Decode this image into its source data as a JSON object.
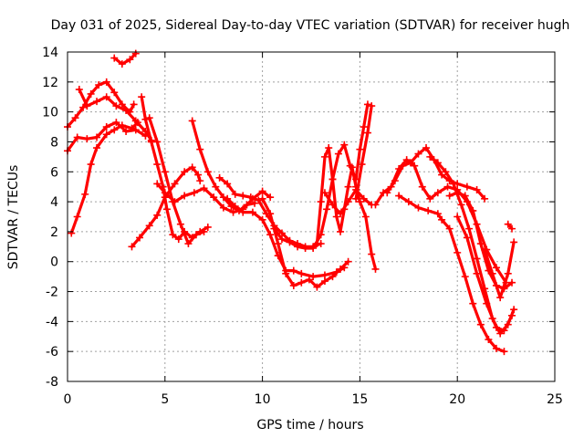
{
  "chart_data": {
    "type": "scatter",
    "title": "Day 031 of 2025, Sidereal Day-to-day VTEC variation (SDTVAR) for receiver hugh",
    "xlabel": "GPS time / hours",
    "ylabel": "SDTVAR / TECUs",
    "xlim": [
      0,
      25
    ],
    "ylim": [
      -8,
      14
    ],
    "x_ticks": [
      "0",
      "5",
      "10",
      "15",
      "20",
      "25"
    ],
    "y_ticks": [
      "-8",
      "-6",
      "-4",
      "-2",
      "0",
      "2",
      "4",
      "6",
      "8",
      "10",
      "12",
      "14"
    ],
    "grid": true,
    "marker": "plus",
    "color": "#ff0000",
    "series": [
      {
        "x": [
          0,
          0.4,
          0.8,
          1.2,
          1.6,
          2.0,
          2.4,
          2.8,
          3.2,
          3.4
        ],
        "y": [
          9.0,
          9.6,
          10.3,
          11.2,
          11.8,
          12.0,
          11.3,
          10.5,
          10.0,
          10.5
        ]
      },
      {
        "x": [
          0.6,
          1.0,
          1.5,
          2.0,
          2.5,
          3.0,
          3.5,
          4.0,
          4.3
        ],
        "y": [
          11.5,
          10.4,
          10.7,
          11.0,
          10.4,
          10.1,
          9.4,
          8.7,
          8.1
        ]
      },
      {
        "x": [
          0,
          0.5,
          1.0,
          1.5,
          2.0,
          2.5,
          3.0,
          3.5,
          4.0
        ],
        "y": [
          7.4,
          8.3,
          8.2,
          8.3,
          9.0,
          9.3,
          8.7,
          8.8,
          8.4
        ]
      },
      {
        "x": [
          0.2,
          0.5,
          0.9,
          1.2,
          1.5,
          2.0,
          2.4,
          2.8,
          3.3,
          3.6
        ],
        "y": [
          1.9,
          3.0,
          4.5,
          6.5,
          7.6,
          8.5,
          8.8,
          9.1,
          8.9,
          9.3
        ]
      },
      {
        "x": [
          2.4,
          2.8,
          3.2,
          3.5
        ],
        "y": [
          13.6,
          13.2,
          13.5,
          13.9
        ]
      },
      {
        "x": [
          3.8,
          4.0,
          4.3,
          4.6,
          4.9,
          5.1,
          5.4,
          5.7,
          6.0,
          6.4,
          6.8,
          7.2
        ],
        "y": [
          11.0,
          9.5,
          8.0,
          6.5,
          5.0,
          3.5,
          1.8,
          1.5,
          2.0,
          1.6,
          2.0,
          2.3
        ]
      },
      {
        "x": [
          4.2,
          4.6,
          5.0,
          5.4,
          5.8,
          6.2,
          6.6,
          7.0
        ],
        "y": [
          9.6,
          8.0,
          6.0,
          4.0,
          2.5,
          1.2,
          1.8,
          2.0
        ]
      },
      {
        "x": [
          3.3,
          3.7,
          4.2,
          4.6,
          5.0,
          5.5,
          6.0,
          6.4,
          6.7,
          6.8
        ],
        "y": [
          1.0,
          1.6,
          2.4,
          3.1,
          4.3,
          5.2,
          6.0,
          6.3,
          5.8,
          5.4
        ]
      },
      {
        "x": [
          4.6,
          5.0,
          5.5,
          6.0,
          6.5,
          7.0,
          7.5,
          8.0,
          8.5,
          9.0,
          9.5,
          10.0,
          10.4
        ],
        "y": [
          5.2,
          4.6,
          4.0,
          4.4,
          4.6,
          4.9,
          4.3,
          3.6,
          3.3,
          3.5,
          4.2,
          4.7,
          4.3
        ]
      },
      {
        "x": [
          6.4,
          6.8,
          7.2,
          7.6,
          8.0,
          8.4,
          8.8,
          9.2,
          9.6
        ],
        "y": [
          9.4,
          7.5,
          6.0,
          5.0,
          4.3,
          3.7,
          3.4,
          3.8,
          3.9
        ]
      },
      {
        "x": [
          7.8,
          8.2,
          8.6,
          9.0,
          9.4,
          9.8,
          10.2,
          10.6,
          11.0,
          11.4,
          11.8,
          12.2,
          12.6,
          13.0
        ],
        "y": [
          5.6,
          5.2,
          4.5,
          4.4,
          4.3,
          4.1,
          3.2,
          2.4,
          1.9,
          1.4,
          1.2,
          1.0,
          1.0,
          1.2
        ]
      },
      {
        "x": [
          8.2,
          8.6,
          9.0,
          9.5,
          10.0,
          10.4,
          10.8,
          11.2,
          11.6,
          12.0,
          12.6,
          13.2,
          13.8,
          14.2
        ],
        "y": [
          4.2,
          3.7,
          3.3,
          3.3,
          2.8,
          1.8,
          0.4,
          -0.6,
          -0.6,
          -0.8,
          -1.0,
          -0.9,
          -0.7,
          -0.4
        ]
      },
      {
        "x": [
          10.0,
          10.4,
          10.8,
          11.2,
          11.6,
          12.0,
          12.4,
          12.8,
          13.2,
          13.6,
          14.0,
          14.4
        ],
        "y": [
          4.2,
          3.2,
          1.2,
          -0.8,
          -1.6,
          -1.4,
          -1.2,
          -1.7,
          -1.3,
          -1.0,
          -0.5,
          0.0
        ]
      },
      {
        "x": [
          10.6,
          11.0,
          11.4,
          11.8,
          12.2,
          12.6,
          13.0,
          13.3,
          13.6,
          13.9,
          14.2,
          14.5,
          14.8,
          15.0,
          15.2,
          15.4
        ],
        "y": [
          2.2,
          1.5,
          1.3,
          1.0,
          0.9,
          0.9,
          1.8,
          3.5,
          5.5,
          7.2,
          7.8,
          6.4,
          5.5,
          7.5,
          9.0,
          10.5
        ]
      },
      {
        "x": [
          12.8,
          13.0,
          13.2,
          13.4,
          13.6,
          13.8,
          14.0,
          14.2,
          14.4,
          14.6,
          14.8,
          15.0,
          15.3,
          15.6,
          15.8
        ],
        "y": [
          1.2,
          4.0,
          7.0,
          7.6,
          5.5,
          3.0,
          2.0,
          3.5,
          5.0,
          6.3,
          5.0,
          4.0,
          3.0,
          0.5,
          -0.5
        ]
      },
      {
        "x": [
          13.2,
          13.6,
          14.0,
          14.4,
          14.8,
          15.2,
          15.6
        ],
        "y": [
          4.6,
          3.8,
          3.2,
          4.0,
          4.8,
          4.2,
          3.8
        ]
      },
      {
        "x": [
          14.8,
          15.1,
          15.4,
          15.6
        ],
        "y": [
          4.2,
          6.5,
          8.6,
          10.4
        ]
      },
      {
        "x": [
          15.8,
          16.2,
          16.6,
          17.0,
          17.4,
          17.8,
          18.2,
          18.6,
          19.0,
          19.5,
          20.0,
          20.5,
          21.0,
          21.5,
          22.0,
          22.5
        ],
        "y": [
          3.8,
          4.6,
          5.0,
          6.2,
          6.8,
          6.4,
          5.0,
          4.2,
          4.6,
          5.0,
          4.8,
          4.0,
          2.5,
          0.8,
          -0.4,
          -1.4
        ]
      },
      {
        "x": [
          16.4,
          16.8,
          17.2,
          17.6,
          18.0,
          18.4,
          18.8,
          19.2,
          19.6,
          20.0,
          20.5,
          21.0,
          21.4
        ],
        "y": [
          4.6,
          5.4,
          6.4,
          6.6,
          7.2,
          7.6,
          6.8,
          5.8,
          5.4,
          5.2,
          5.0,
          4.8,
          4.2
        ]
      },
      {
        "x": [
          17.0,
          17.5,
          18.0,
          18.5,
          19.0,
          19.2,
          19.6,
          20.0,
          20.4,
          20.8,
          21.2,
          21.6,
          22.0,
          22.4
        ],
        "y": [
          4.4,
          4.0,
          3.6,
          3.4,
          3.2,
          2.8,
          2.2,
          0.6,
          -1.0,
          -2.8,
          -4.2,
          -5.2,
          -5.8,
          -6.0
        ]
      },
      {
        "x": [
          18.6,
          19.0,
          19.4,
          19.8,
          20.2,
          20.6,
          21.0,
          21.4,
          21.8,
          22.2,
          22.6,
          22.9
        ],
        "y": [
          7.0,
          6.6,
          6.0,
          5.2,
          3.8,
          2.2,
          0.2,
          -1.8,
          -3.8,
          -4.8,
          -4.2,
          -3.2
        ]
      },
      {
        "x": [
          19.6,
          20.0,
          20.4,
          20.8,
          21.2,
          21.6,
          22.0,
          22.4,
          22.8
        ],
        "y": [
          4.4,
          4.6,
          4.4,
          3.4,
          1.2,
          -0.6,
          -1.6,
          -1.8,
          -1.4
        ]
      },
      {
        "x": [
          20.0,
          20.5,
          21.0,
          21.5,
          22.0,
          22.4,
          22.8
        ],
        "y": [
          3.0,
          1.6,
          -0.8,
          -2.8,
          -4.4,
          -4.6,
          -3.6
        ]
      },
      {
        "x": [
          21.4,
          21.8,
          22.2,
          22.6,
          22.9
        ],
        "y": [
          0.8,
          -0.8,
          -2.4,
          -0.8,
          1.3
        ]
      },
      {
        "x": [
          22.6,
          22.8
        ],
        "y": [
          2.5,
          2.2
        ]
      }
    ]
  }
}
